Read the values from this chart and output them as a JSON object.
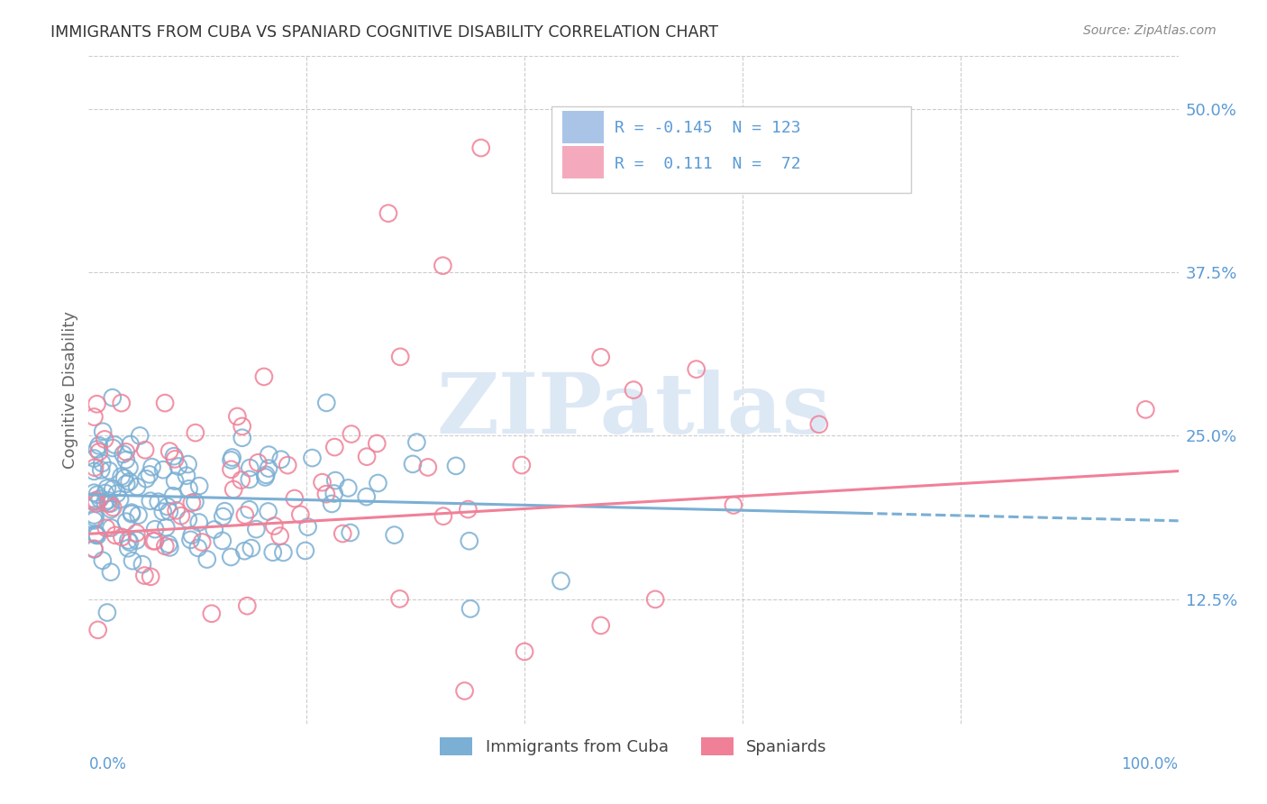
{
  "title": "IMMIGRANTS FROM CUBA VS SPANIARD COGNITIVE DISABILITY CORRELATION CHART",
  "source": "Source: ZipAtlas.com",
  "ylabel": "Cognitive Disability",
  "ytick_vals": [
    0.125,
    0.25,
    0.375,
    0.5
  ],
  "ytick_labels": [
    "12.5%",
    "25.0%",
    "37.5%",
    "50.0%"
  ],
  "xlim": [
    0.0,
    1.0
  ],
  "ylim": [
    0.03,
    0.54
  ],
  "cuba_color": "#7bafd4",
  "cuba_patch_color": "#aac4e8",
  "spain_color": "#f08098",
  "spain_patch_color": "#f4aabc",
  "cuba_R": -0.145,
  "cuba_N": 123,
  "spain_R": 0.111,
  "spain_N": 72,
  "axis_color": "#5b9bd5",
  "grid_color": "#cccccc",
  "title_color": "#333333",
  "source_color": "#888888",
  "ylabel_color": "#666666",
  "watermark_text": "ZIPatlas",
  "watermark_color": "#dde8f5",
  "legend_border_color": "#cccccc"
}
